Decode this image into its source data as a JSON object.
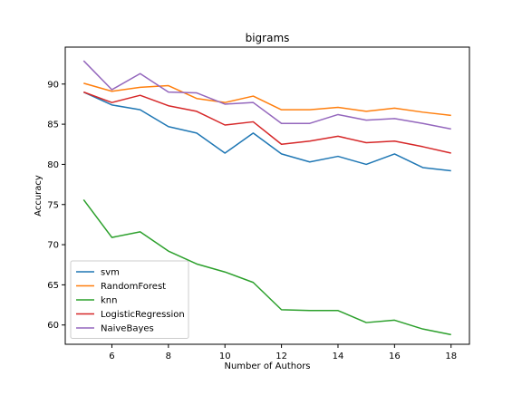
{
  "chart_data": {
    "type": "line",
    "title": "bigrams",
    "xlabel": "Number of Authors",
    "ylabel": "Accuracy",
    "xlim": [
      4.35,
      18.65
    ],
    "ylim": [
      57.6,
      94.6
    ],
    "xticks": [
      6,
      8,
      10,
      12,
      14,
      16,
      18
    ],
    "yticks": [
      60,
      65,
      70,
      75,
      80,
      85,
      90
    ],
    "grid": false,
    "legend_position": "lower-left",
    "x": [
      5,
      6,
      7,
      8,
      9,
      10,
      11,
      12,
      13,
      14,
      15,
      16,
      17,
      18
    ],
    "series": [
      {
        "name": "svm",
        "color": "#1f77b4",
        "values": [
          89.0,
          87.4,
          86.8,
          84.7,
          83.9,
          81.4,
          83.9,
          81.3,
          80.3,
          81.0,
          80.0,
          81.3,
          79.6,
          79.2
        ]
      },
      {
        "name": "RandomForest",
        "color": "#ff7f0e",
        "values": [
          90.1,
          89.1,
          89.6,
          89.8,
          88.2,
          87.7,
          88.5,
          86.8,
          86.8,
          87.1,
          86.6,
          87.0,
          86.5,
          86.1
        ]
      },
      {
        "name": "knn",
        "color": "#2ca02c",
        "values": [
          75.6,
          70.9,
          71.6,
          69.2,
          67.6,
          66.6,
          65.3,
          61.9,
          61.8,
          61.8,
          60.3,
          60.6,
          59.5,
          58.8
        ]
      },
      {
        "name": "LogisticRegression",
        "color": "#d62728",
        "values": [
          89.0,
          87.7,
          88.6,
          87.3,
          86.6,
          84.9,
          85.3,
          82.5,
          82.9,
          83.5,
          82.7,
          82.9,
          82.2,
          81.4
        ]
      },
      {
        "name": "NaiveBayes",
        "color": "#9467bd",
        "values": [
          92.9,
          89.3,
          91.3,
          89.0,
          88.9,
          87.5,
          87.7,
          85.1,
          85.1,
          86.2,
          85.5,
          85.7,
          85.1,
          84.4
        ]
      }
    ]
  }
}
